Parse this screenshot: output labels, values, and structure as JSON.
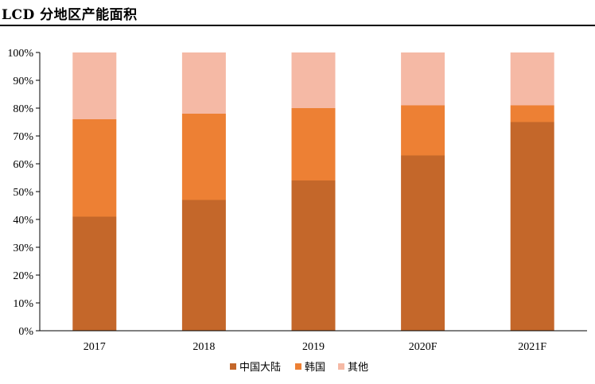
{
  "title": "LCD 分地区产能面积",
  "chart_data": {
    "type": "bar",
    "stacked": true,
    "percent": true,
    "categories": [
      "2017",
      "2018",
      "2019",
      "2020F",
      "2021F"
    ],
    "series": [
      {
        "name": "中国大陆",
        "color": "#C4672A",
        "values": [
          41,
          47,
          54,
          63,
          75
        ]
      },
      {
        "name": "韩国",
        "color": "#ED8034",
        "values": [
          35,
          31,
          26,
          18,
          6
        ]
      },
      {
        "name": "其他",
        "color": "#F5B9A5",
        "values": [
          24,
          22,
          20,
          19,
          19
        ]
      }
    ],
    "y_ticks": [
      "0%",
      "10%",
      "20%",
      "30%",
      "40%",
      "50%",
      "60%",
      "70%",
      "80%",
      "90%",
      "100%"
    ],
    "ylim": [
      0,
      100
    ],
    "grid": false,
    "legend_position": "bottom"
  }
}
